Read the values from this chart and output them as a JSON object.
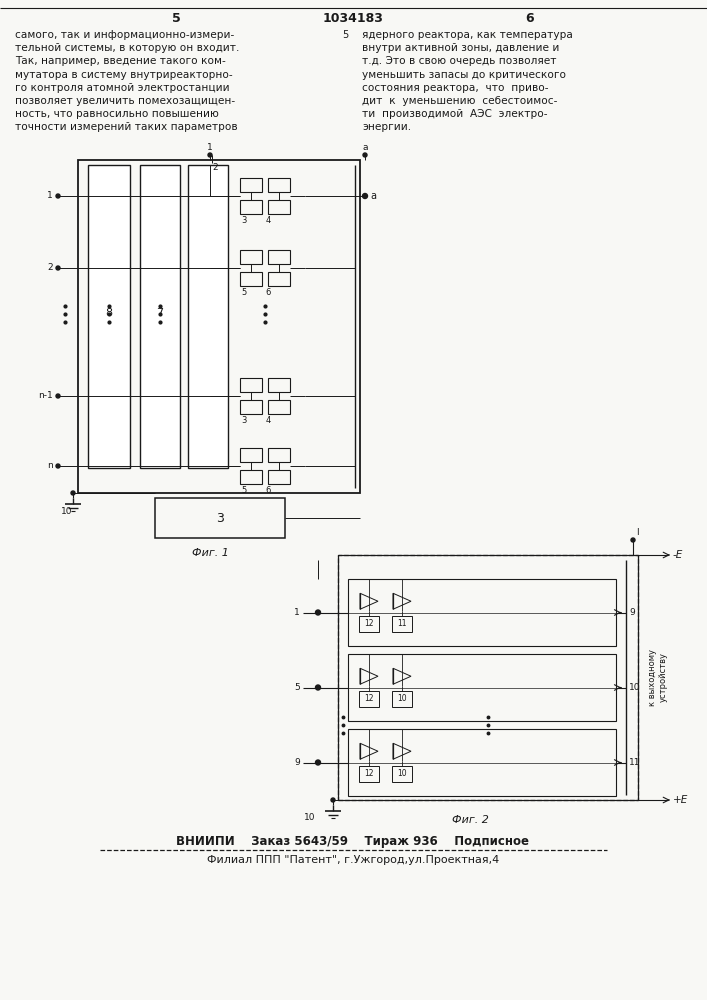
{
  "background_color": "#f8f8f5",
  "page_width": 7.07,
  "page_height": 10.0,
  "header_left_num": "5",
  "header_center_num": "1034183",
  "header_right_num": "6",
  "text_left_col": [
    "самого, так и информационно-измери-",
    "тельной системы, в которую он входит.",
    "Так, например, введение такого ком-",
    "мутатора в систему внутриреакторно-",
    "го контроля атомной электростанции",
    "позволяет увеличить помехозащищен-",
    "ность, что равносильно повышению",
    "точности измерений таких параметров"
  ],
  "text_right_col": [
    "ядерного реактора, как температура",
    "внутри активной зоны, давление и",
    "т.д. Это в свою очередь позволяет",
    "уменьшить запасы до критического",
    "состояния реактора,  что  приво-",
    "дит  к  уменьшению  себестоимос-",
    "ти  производимой  АЭС  электро-",
    "энергии."
  ],
  "fig1_caption": "Фиг. 1",
  "fig2_caption": "Фиг. 2",
  "footer_line1": "ВНИИПИ    Заказ 5643/59    Тираж 936    Подписное",
  "footer_line2": "Филиал ППП \"Патент\", г.Ужгород,ул.Проектная,4",
  "text_color": "#1a1a1a",
  "line_color": "#1a1a1a"
}
